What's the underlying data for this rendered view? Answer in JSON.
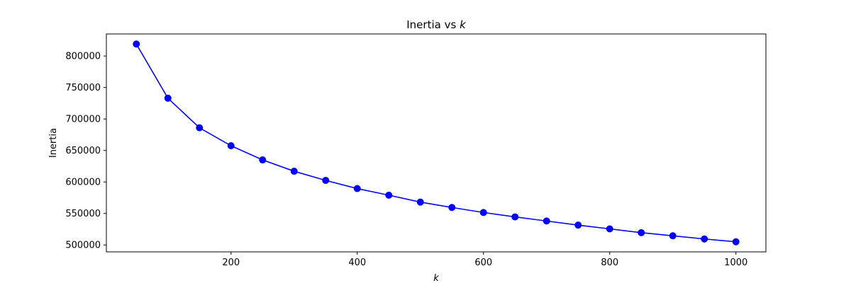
{
  "chart_data": {
    "type": "line",
    "title": "Inertia vs",
    "title_var": "k",
    "xlabel": "k",
    "ylabel": "Inertia",
    "xlim": [
      2.5,
      1047.5
    ],
    "ylim": [
      489000,
      835000
    ],
    "xticks": [
      200,
      400,
      600,
      800,
      1000
    ],
    "yticks": [
      500000,
      550000,
      600000,
      650000,
      700000,
      750000,
      800000
    ],
    "xtick_labels": [
      "200",
      "400",
      "600",
      "800",
      "1000"
    ],
    "ytick_labels": [
      "500000",
      "550000",
      "600000",
      "650000",
      "700000",
      "750000",
      "800000"
    ],
    "grid": false,
    "color": "#0000ff",
    "marker": "circle",
    "series": [
      {
        "x": [
          50,
          100,
          150,
          200,
          250,
          300,
          350,
          400,
          450,
          500,
          550,
          600,
          650,
          700,
          750,
          800,
          850,
          900,
          950,
          1000
        ],
        "values": [
          819000,
          733000,
          686000,
          657500,
          635000,
          617000,
          602500,
          589500,
          579000,
          568000,
          559500,
          551500,
          544500,
          538000,
          531500,
          525500,
          519500,
          514500,
          509500,
          505000
        ]
      }
    ]
  }
}
